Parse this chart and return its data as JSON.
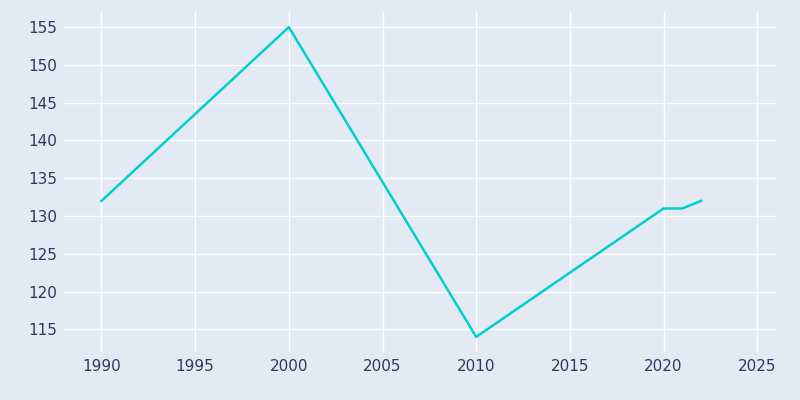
{
  "years": [
    1990,
    2000,
    2010,
    2020,
    2021,
    2022
  ],
  "population": [
    132,
    155,
    114,
    131,
    131,
    132
  ],
  "line_color": "#00CED1",
  "plot_background_color": "#E3EAF3",
  "fig_background_color": "#E3EAF3",
  "grid_color": "#FFFFFF",
  "text_color": "#2E3A5C",
  "xlim": [
    1988,
    2026
  ],
  "ylim": [
    112,
    157
  ],
  "xticks": [
    1990,
    1995,
    2000,
    2005,
    2010,
    2015,
    2020,
    2025
  ],
  "yticks": [
    115,
    120,
    125,
    130,
    135,
    140,
    145,
    150,
    155
  ],
  "linewidth": 1.8,
  "figsize": [
    8.0,
    4.0
  ],
  "dpi": 100
}
